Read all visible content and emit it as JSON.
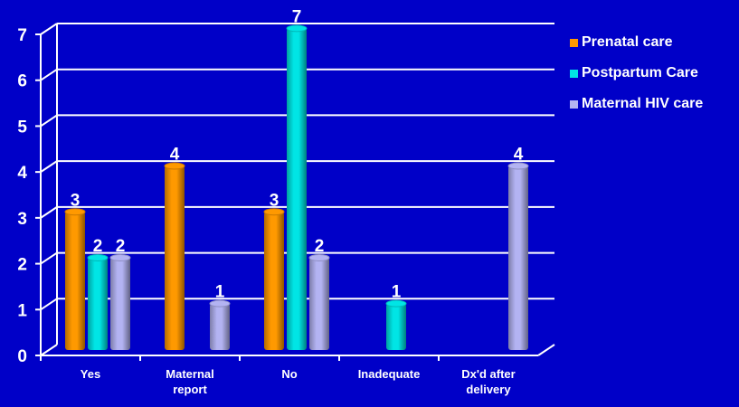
{
  "chart_data": {
    "type": "bar",
    "categories": [
      "Yes",
      "Maternal\nreport",
      "No",
      "Inadequate",
      "Dx'd after\ndelivery"
    ],
    "series": [
      {
        "name": "Prenatal care",
        "color": "#ff9900",
        "values": [
          3,
          4,
          3,
          null,
          null
        ]
      },
      {
        "name": "Postpartum Care",
        "color": "#00e5e5",
        "values": [
          2,
          null,
          7,
          1,
          null
        ]
      },
      {
        "name": "Maternal HIV care",
        "color": "#b3b3f2",
        "values": [
          2,
          1,
          2,
          null,
          4
        ]
      }
    ],
    "ylim": [
      0,
      7
    ],
    "yticks": [
      0,
      1,
      2,
      3,
      4,
      5,
      6,
      7
    ],
    "grid": true,
    "legend": "right"
  }
}
